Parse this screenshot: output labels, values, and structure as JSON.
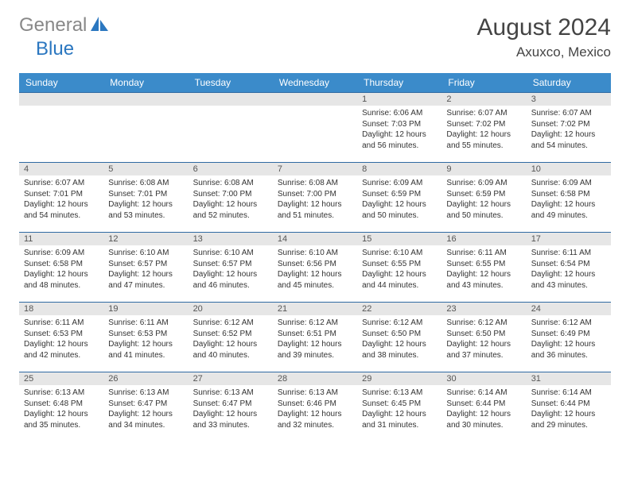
{
  "logo": {
    "text_gray": "General",
    "text_blue": "Blue",
    "gray": "#888888",
    "blue": "#2b77c0"
  },
  "header": {
    "title": "August 2024",
    "location": "Axuxco, Mexico"
  },
  "colors": {
    "header_bg": "#3b8bca",
    "header_text": "#ffffff",
    "row_border": "#2f6aa3",
    "daynum_bg": "#e6e6e6",
    "daynum_text": "#555555",
    "body_text": "#333333",
    "title_text": "#444444"
  },
  "day_headers": [
    "Sunday",
    "Monday",
    "Tuesday",
    "Wednesday",
    "Thursday",
    "Friday",
    "Saturday"
  ],
  "weeks": [
    [
      null,
      null,
      null,
      null,
      {
        "n": "1",
        "sunrise": "6:06 AM",
        "sunset": "7:03 PM",
        "daylight": "12 hours and 56 minutes."
      },
      {
        "n": "2",
        "sunrise": "6:07 AM",
        "sunset": "7:02 PM",
        "daylight": "12 hours and 55 minutes."
      },
      {
        "n": "3",
        "sunrise": "6:07 AM",
        "sunset": "7:02 PM",
        "daylight": "12 hours and 54 minutes."
      }
    ],
    [
      {
        "n": "4",
        "sunrise": "6:07 AM",
        "sunset": "7:01 PM",
        "daylight": "12 hours and 54 minutes."
      },
      {
        "n": "5",
        "sunrise": "6:08 AM",
        "sunset": "7:01 PM",
        "daylight": "12 hours and 53 minutes."
      },
      {
        "n": "6",
        "sunrise": "6:08 AM",
        "sunset": "7:00 PM",
        "daylight": "12 hours and 52 minutes."
      },
      {
        "n": "7",
        "sunrise": "6:08 AM",
        "sunset": "7:00 PM",
        "daylight": "12 hours and 51 minutes."
      },
      {
        "n": "8",
        "sunrise": "6:09 AM",
        "sunset": "6:59 PM",
        "daylight": "12 hours and 50 minutes."
      },
      {
        "n": "9",
        "sunrise": "6:09 AM",
        "sunset": "6:59 PM",
        "daylight": "12 hours and 50 minutes."
      },
      {
        "n": "10",
        "sunrise": "6:09 AM",
        "sunset": "6:58 PM",
        "daylight": "12 hours and 49 minutes."
      }
    ],
    [
      {
        "n": "11",
        "sunrise": "6:09 AM",
        "sunset": "6:58 PM",
        "daylight": "12 hours and 48 minutes."
      },
      {
        "n": "12",
        "sunrise": "6:10 AM",
        "sunset": "6:57 PM",
        "daylight": "12 hours and 47 minutes."
      },
      {
        "n": "13",
        "sunrise": "6:10 AM",
        "sunset": "6:57 PM",
        "daylight": "12 hours and 46 minutes."
      },
      {
        "n": "14",
        "sunrise": "6:10 AM",
        "sunset": "6:56 PM",
        "daylight": "12 hours and 45 minutes."
      },
      {
        "n": "15",
        "sunrise": "6:10 AM",
        "sunset": "6:55 PM",
        "daylight": "12 hours and 44 minutes."
      },
      {
        "n": "16",
        "sunrise": "6:11 AM",
        "sunset": "6:55 PM",
        "daylight": "12 hours and 43 minutes."
      },
      {
        "n": "17",
        "sunrise": "6:11 AM",
        "sunset": "6:54 PM",
        "daylight": "12 hours and 43 minutes."
      }
    ],
    [
      {
        "n": "18",
        "sunrise": "6:11 AM",
        "sunset": "6:53 PM",
        "daylight": "12 hours and 42 minutes."
      },
      {
        "n": "19",
        "sunrise": "6:11 AM",
        "sunset": "6:53 PM",
        "daylight": "12 hours and 41 minutes."
      },
      {
        "n": "20",
        "sunrise": "6:12 AM",
        "sunset": "6:52 PM",
        "daylight": "12 hours and 40 minutes."
      },
      {
        "n": "21",
        "sunrise": "6:12 AM",
        "sunset": "6:51 PM",
        "daylight": "12 hours and 39 minutes."
      },
      {
        "n": "22",
        "sunrise": "6:12 AM",
        "sunset": "6:50 PM",
        "daylight": "12 hours and 38 minutes."
      },
      {
        "n": "23",
        "sunrise": "6:12 AM",
        "sunset": "6:50 PM",
        "daylight": "12 hours and 37 minutes."
      },
      {
        "n": "24",
        "sunrise": "6:12 AM",
        "sunset": "6:49 PM",
        "daylight": "12 hours and 36 minutes."
      }
    ],
    [
      {
        "n": "25",
        "sunrise": "6:13 AM",
        "sunset": "6:48 PM",
        "daylight": "12 hours and 35 minutes."
      },
      {
        "n": "26",
        "sunrise": "6:13 AM",
        "sunset": "6:47 PM",
        "daylight": "12 hours and 34 minutes."
      },
      {
        "n": "27",
        "sunrise": "6:13 AM",
        "sunset": "6:47 PM",
        "daylight": "12 hours and 33 minutes."
      },
      {
        "n": "28",
        "sunrise": "6:13 AM",
        "sunset": "6:46 PM",
        "daylight": "12 hours and 32 minutes."
      },
      {
        "n": "29",
        "sunrise": "6:13 AM",
        "sunset": "6:45 PM",
        "daylight": "12 hours and 31 minutes."
      },
      {
        "n": "30",
        "sunrise": "6:14 AM",
        "sunset": "6:44 PM",
        "daylight": "12 hours and 30 minutes."
      },
      {
        "n": "31",
        "sunrise": "6:14 AM",
        "sunset": "6:44 PM",
        "daylight": "12 hours and 29 minutes."
      }
    ]
  ],
  "labels": {
    "sunrise": "Sunrise:",
    "sunset": "Sunset:",
    "daylight": "Daylight:"
  }
}
